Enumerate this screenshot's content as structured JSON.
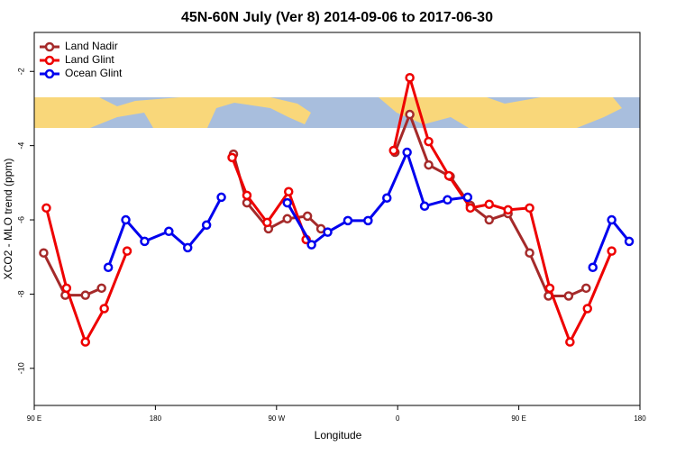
{
  "chart_data": {
    "type": "line",
    "title": "45N-60N July (Ver 8)   2014-09-06 to 2017-06-30",
    "x_label": "Longitude",
    "y_label": "XCO2 - MLO trend (ppm)",
    "xlim": [
      -270,
      180
    ],
    "xticks": [
      {
        "value": -270,
        "label": "90 E"
      },
      {
        "value": -180,
        "label": "180"
      },
      {
        "value": -90,
        "label": "90 W"
      },
      0,
      {
        "value": 90,
        "label": "90 E"
      },
      180
    ],
    "ylim": [
      -11,
      -0.95
    ],
    "yticks": [
      -10,
      -8,
      -6,
      -4,
      -2
    ],
    "legend": "top-left",
    "series": [
      {
        "name": "Land Nadir",
        "color": "#a52a2a",
        "x": [
          -263,
          -247,
          -232,
          -220,
          null,
          -122,
          -112,
          -96,
          -82,
          -67,
          -57,
          null,
          -2,
          9,
          23,
          39,
          54,
          68,
          82,
          98,
          112,
          127,
          140
        ],
        "values": [
          -6.89,
          -8.03,
          -8.03,
          -7.84,
          null,
          -4.23,
          -5.54,
          -6.24,
          -5.97,
          -5.9,
          -6.24,
          null,
          -4.18,
          -3.16,
          -4.52,
          -4.83,
          -5.61,
          -6.0,
          -5.83,
          -6.89,
          -8.05,
          -8.05,
          -7.84
        ]
      },
      {
        "name": "Land Glint",
        "color": "#ee0000",
        "x": [
          -261,
          -246,
          -232,
          -218,
          -201,
          null,
          -123,
          -112,
          -97,
          -81,
          -68,
          null,
          -3,
          9,
          23,
          38,
          54,
          68,
          82,
          98,
          113,
          128,
          141,
          159
        ],
        "values": [
          -5.68,
          -7.84,
          -9.29,
          -8.39,
          -6.84,
          null,
          -4.32,
          -5.34,
          -6.07,
          -5.24,
          -6.53,
          null,
          -4.13,
          -2.17,
          -3.89,
          -4.81,
          -5.68,
          -5.58,
          -5.73,
          -5.68,
          -7.84,
          -9.29,
          -8.39,
          -6.84
        ]
      },
      {
        "name": "Ocean Glint",
        "color": "#0000ee",
        "x": [
          -215,
          -202,
          -188,
          -170,
          -156,
          -142,
          -131,
          null,
          -82,
          -64,
          -52,
          -37,
          -22,
          -8,
          7,
          20,
          37,
          52,
          null,
          145,
          159,
          172
        ],
        "values": [
          -7.28,
          -6.0,
          -6.58,
          -6.31,
          -6.75,
          -6.14,
          -5.39,
          null,
          -5.54,
          -6.67,
          -6.33,
          -6.02,
          -6.02,
          -5.41,
          -4.18,
          -5.63,
          -5.46,
          -5.39,
          null,
          -7.28,
          -6.0,
          -6.58
        ]
      }
    ]
  }
}
